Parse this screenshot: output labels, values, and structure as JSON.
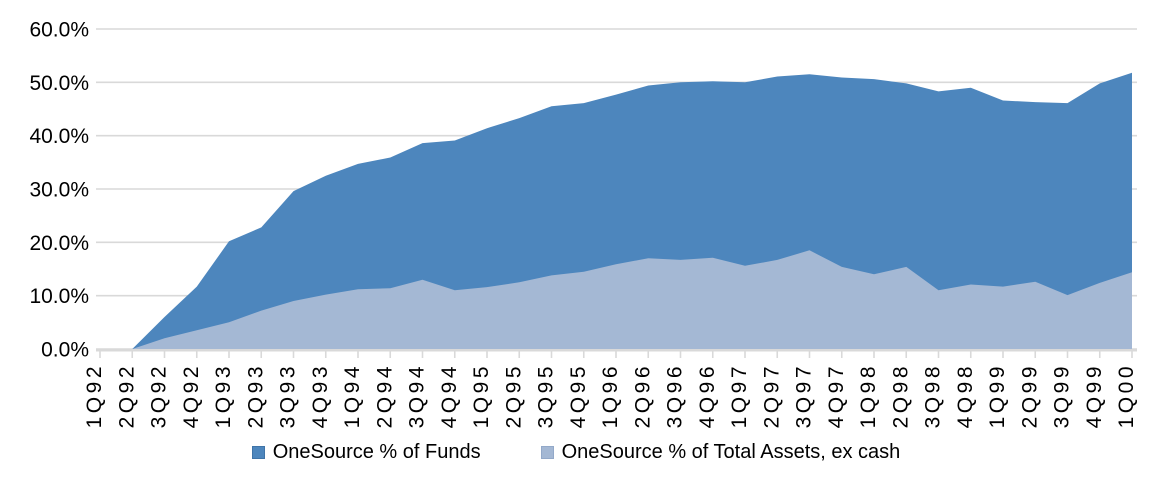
{
  "chart_data": {
    "type": "area",
    "categories": [
      "1Q92",
      "2Q92",
      "3Q92",
      "4Q92",
      "1Q93",
      "2Q93",
      "3Q93",
      "4Q93",
      "1Q94",
      "2Q94",
      "3Q94",
      "4Q94",
      "1Q95",
      "2Q95",
      "3Q95",
      "4Q95",
      "1Q96",
      "2Q96",
      "3Q96",
      "4Q96",
      "1Q97",
      "2Q97",
      "3Q97",
      "4Q97",
      "1Q98",
      "2Q98",
      "3Q98",
      "4Q98",
      "1Q99",
      "2Q99",
      "3Q99",
      "4Q99",
      "1Q00"
    ],
    "series": [
      {
        "name": "OneSource % of Funds",
        "color": "#4d86bd",
        "swatch_border": "#3f74a8",
        "values": [
          0.0,
          0.0,
          6.0,
          11.7,
          20.2,
          22.8,
          29.6,
          32.5,
          34.7,
          35.9,
          38.6,
          39.1,
          41.4,
          43.3,
          45.5,
          46.1,
          47.7,
          49.4,
          50.0,
          50.2,
          50.0,
          51.1,
          51.5,
          50.9,
          50.6,
          49.8,
          48.3,
          49.0,
          46.6,
          46.3,
          46.1,
          49.8,
          51.8
        ]
      },
      {
        "name": "OneSource % of Total Assets, ex cash",
        "color": "#a4b8d4",
        "swatch_border": "#93a9c9",
        "values": [
          0.0,
          0.0,
          2.0,
          3.5,
          5.0,
          7.2,
          9.0,
          10.2,
          11.2,
          11.4,
          13.0,
          11.0,
          11.6,
          12.5,
          13.8,
          14.5,
          15.9,
          17.0,
          16.7,
          17.1,
          15.6,
          16.7,
          18.5,
          15.4,
          14.0,
          15.4,
          11.0,
          12.1,
          11.7,
          12.6,
          10.1,
          12.4,
          14.4
        ]
      }
    ],
    "ylim": [
      0,
      60
    ],
    "ytick_step": 10,
    "ytick_labels": [
      "0.0%",
      "10.0%",
      "20.0%",
      "30.0%",
      "40.0%",
      "50.0%",
      "60.0%"
    ],
    "grid": true,
    "grid_color": "#d9d9d9",
    "axis_color": "#d9d9d9",
    "text_color": "#000000",
    "legend_position": "bottom"
  }
}
